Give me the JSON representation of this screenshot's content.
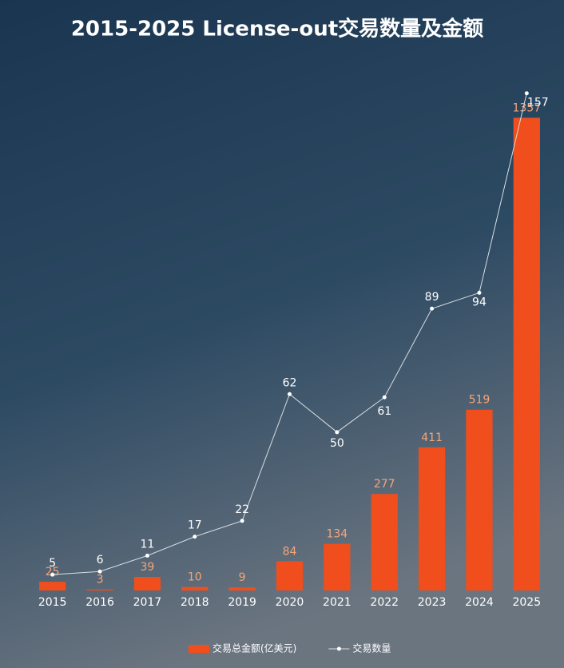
{
  "chart_data": {
    "type": "bar",
    "title": "2015-2025 License-out交易数量及金额",
    "categories": [
      "2015",
      "2016",
      "2017",
      "2018",
      "2019",
      "2020",
      "2021",
      "2022",
      "2023",
      "2024",
      "2025"
    ],
    "series": [
      {
        "name": "交易总金额(亿美元)",
        "type": "bar",
        "color": "#f04e1c",
        "label_color": "#f5a57a",
        "values": [
          25,
          3,
          39,
          10,
          9,
          84,
          134,
          277,
          411,
          519,
          1357
        ]
      },
      {
        "name": "交易数量",
        "type": "line",
        "axis": "y2",
        "color": "#d8dde2",
        "label_color": "#ffffff",
        "values": [
          5,
          6,
          11,
          17,
          22,
          62,
          50,
          61,
          89,
          94,
          157
        ]
      }
    ],
    "ylim": [
      0,
      1500
    ],
    "y2lim": [
      0,
      165
    ],
    "legend": "bottom"
  }
}
